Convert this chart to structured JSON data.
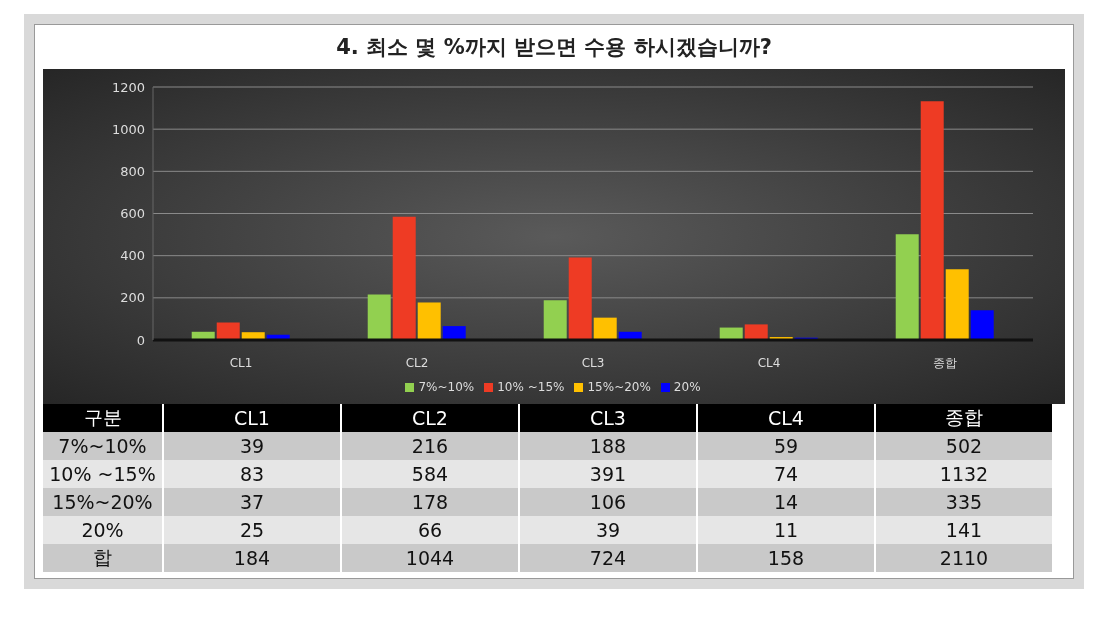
{
  "chart_data": {
    "type": "bar",
    "title": "4. 최소 몇 %까지 받으면 수용 하시겠습니까?",
    "categories": [
      "CL1",
      "CL2",
      "CL3",
      "CL4",
      "종합"
    ],
    "series": [
      {
        "name": "7%~10%",
        "color": "#92d050",
        "values": [
          39,
          216,
          188,
          59,
          502
        ]
      },
      {
        "name": "10% ~15%",
        "color": "#ee3b24",
        "values": [
          83,
          584,
          391,
          74,
          1132
        ]
      },
      {
        "name": "15%~20%",
        "color": "#ffc000",
        "values": [
          37,
          178,
          106,
          14,
          335
        ]
      },
      {
        "name": "20%",
        "color": "#0000ff",
        "values": [
          25,
          66,
          39,
          11,
          141
        ]
      }
    ],
    "ylim": [
      0,
      1200
    ],
    "yticks": [
      0,
      200,
      400,
      600,
      800,
      1000,
      1200
    ],
    "grid": "y",
    "legend": "bottom",
    "data_labels": true,
    "annotations": [
      "구분",
      "합",
      "184",
      "1044",
      "724",
      "158",
      "2110"
    ]
  }
}
